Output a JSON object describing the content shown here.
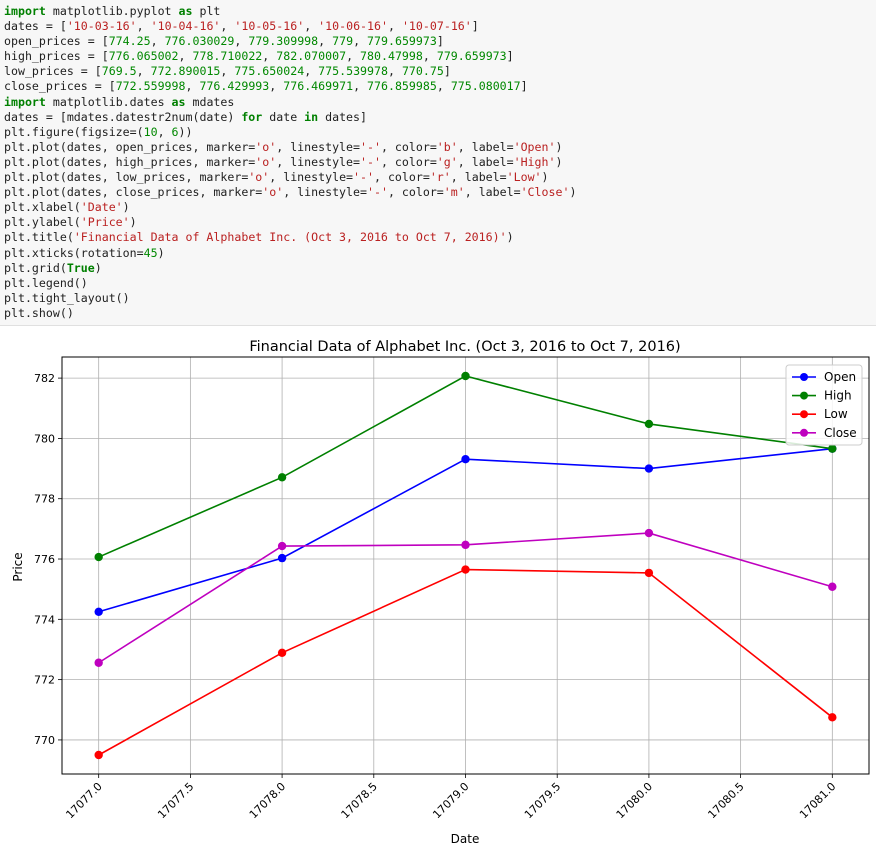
{
  "code": {
    "lines": [
      [
        {
          "t": "import",
          "c": "kw"
        },
        {
          "t": " matplotlib.pyplot "
        },
        {
          "t": "as",
          "c": "kw"
        },
        {
          "t": " plt"
        }
      ],
      [
        {
          "t": "dates = ["
        },
        {
          "t": "'10-03-16'",
          "c": "str"
        },
        {
          "t": ", "
        },
        {
          "t": "'10-04-16'",
          "c": "str"
        },
        {
          "t": ", "
        },
        {
          "t": "'10-05-16'",
          "c": "str"
        },
        {
          "t": ", "
        },
        {
          "t": "'10-06-16'",
          "c": "str"
        },
        {
          "t": ", "
        },
        {
          "t": "'10-07-16'",
          "c": "str"
        },
        {
          "t": "]"
        }
      ],
      [
        {
          "t": "open_prices = ["
        },
        {
          "t": "774.25",
          "c": "num"
        },
        {
          "t": ", "
        },
        {
          "t": "776.030029",
          "c": "num"
        },
        {
          "t": ", "
        },
        {
          "t": "779.309998",
          "c": "num"
        },
        {
          "t": ", "
        },
        {
          "t": "779",
          "c": "num"
        },
        {
          "t": ", "
        },
        {
          "t": "779.659973",
          "c": "num"
        },
        {
          "t": "]"
        }
      ],
      [
        {
          "t": "high_prices = ["
        },
        {
          "t": "776.065002",
          "c": "num"
        },
        {
          "t": ", "
        },
        {
          "t": "778.710022",
          "c": "num"
        },
        {
          "t": ", "
        },
        {
          "t": "782.070007",
          "c": "num"
        },
        {
          "t": ", "
        },
        {
          "t": "780.47998",
          "c": "num"
        },
        {
          "t": ", "
        },
        {
          "t": "779.659973",
          "c": "num"
        },
        {
          "t": "]"
        }
      ],
      [
        {
          "t": "low_prices = ["
        },
        {
          "t": "769.5",
          "c": "num"
        },
        {
          "t": ", "
        },
        {
          "t": "772.890015",
          "c": "num"
        },
        {
          "t": ", "
        },
        {
          "t": "775.650024",
          "c": "num"
        },
        {
          "t": ", "
        },
        {
          "t": "775.539978",
          "c": "num"
        },
        {
          "t": ", "
        },
        {
          "t": "770.75",
          "c": "num"
        },
        {
          "t": "]"
        }
      ],
      [
        {
          "t": "close_prices = ["
        },
        {
          "t": "772.559998",
          "c": "num"
        },
        {
          "t": ", "
        },
        {
          "t": "776.429993",
          "c": "num"
        },
        {
          "t": ", "
        },
        {
          "t": "776.469971",
          "c": "num"
        },
        {
          "t": ", "
        },
        {
          "t": "776.859985",
          "c": "num"
        },
        {
          "t": ", "
        },
        {
          "t": "775.080017",
          "c": "num"
        },
        {
          "t": "]"
        }
      ],
      [
        {
          "t": "import",
          "c": "kw"
        },
        {
          "t": " matplotlib.dates "
        },
        {
          "t": "as",
          "c": "kw"
        },
        {
          "t": " mdates"
        }
      ],
      [
        {
          "t": "dates = [mdates.datestr2num(date) "
        },
        {
          "t": "for",
          "c": "kw"
        },
        {
          "t": " date "
        },
        {
          "t": "in",
          "c": "kw"
        },
        {
          "t": " dates]"
        }
      ],
      [
        {
          "t": "plt.figure(figsize=("
        },
        {
          "t": "10",
          "c": "num"
        },
        {
          "t": ", "
        },
        {
          "t": "6",
          "c": "num"
        },
        {
          "t": "))"
        }
      ],
      [
        {
          "t": "plt.plot(dates, open_prices, marker="
        },
        {
          "t": "'o'",
          "c": "str"
        },
        {
          "t": ", linestyle="
        },
        {
          "t": "'-'",
          "c": "str"
        },
        {
          "t": ", color="
        },
        {
          "t": "'b'",
          "c": "str"
        },
        {
          "t": ", label="
        },
        {
          "t": "'Open'",
          "c": "str"
        },
        {
          "t": ")"
        }
      ],
      [
        {
          "t": "plt.plot(dates, high_prices, marker="
        },
        {
          "t": "'o'",
          "c": "str"
        },
        {
          "t": ", linestyle="
        },
        {
          "t": "'-'",
          "c": "str"
        },
        {
          "t": ", color="
        },
        {
          "t": "'g'",
          "c": "str"
        },
        {
          "t": ", label="
        },
        {
          "t": "'High'",
          "c": "str"
        },
        {
          "t": ")"
        }
      ],
      [
        {
          "t": "plt.plot(dates, low_prices, marker="
        },
        {
          "t": "'o'",
          "c": "str"
        },
        {
          "t": ", linestyle="
        },
        {
          "t": "'-'",
          "c": "str"
        },
        {
          "t": ", color="
        },
        {
          "t": "'r'",
          "c": "str"
        },
        {
          "t": ", label="
        },
        {
          "t": "'Low'",
          "c": "str"
        },
        {
          "t": ")"
        }
      ],
      [
        {
          "t": "plt.plot(dates, close_prices, marker="
        },
        {
          "t": "'o'",
          "c": "str"
        },
        {
          "t": ", linestyle="
        },
        {
          "t": "'-'",
          "c": "str"
        },
        {
          "t": ", color="
        },
        {
          "t": "'m'",
          "c": "str"
        },
        {
          "t": ", label="
        },
        {
          "t": "'Close'",
          "c": "str"
        },
        {
          "t": ")"
        }
      ],
      [
        {
          "t": "plt.xlabel("
        },
        {
          "t": "'Date'",
          "c": "str"
        },
        {
          "t": ")"
        }
      ],
      [
        {
          "t": "plt.ylabel("
        },
        {
          "t": "'Price'",
          "c": "str"
        },
        {
          "t": ")"
        }
      ],
      [
        {
          "t": "plt.title("
        },
        {
          "t": "'Financial Data of Alphabet Inc. (Oct 3, 2016 to Oct 7, 2016)'",
          "c": "str"
        },
        {
          "t": ")"
        }
      ],
      [
        {
          "t": "plt.xticks(rotation="
        },
        {
          "t": "45",
          "c": "num"
        },
        {
          "t": ")"
        }
      ],
      [
        {
          "t": "plt.grid("
        },
        {
          "t": "True",
          "c": "kw"
        },
        {
          "t": ")"
        }
      ],
      [
        {
          "t": "plt.legend()"
        }
      ],
      [
        {
          "t": "plt.tight_layout()"
        }
      ],
      [
        {
          "t": "plt.show()"
        }
      ]
    ]
  },
  "chart_data": {
    "type": "line",
    "title": "Financial Data of Alphabet Inc. (Oct 3, 2016 to Oct 7, 2016)",
    "xlabel": "Date",
    "ylabel": "Price",
    "x": [
      17077.0,
      17078.0,
      17079.0,
      17080.0,
      17081.0
    ],
    "xlim": [
      16776.8,
      17081.2
    ],
    "ylim": [
      768.87,
      782.7
    ],
    "xticks": [
      "17077.0",
      "17077.5",
      "17078.0",
      "17078.5",
      "17079.0",
      "17079.5",
      "17080.0",
      "17080.5",
      "17081.0"
    ],
    "xtick_values": [
      17077.0,
      17077.5,
      17078.0,
      17078.5,
      17079.0,
      17079.5,
      17080.0,
      17080.5,
      17081.0
    ],
    "yticks": [
      "770",
      "772",
      "774",
      "776",
      "778",
      "780",
      "782"
    ],
    "ytick_values": [
      770,
      772,
      774,
      776,
      778,
      780,
      782
    ],
    "grid": true,
    "legend_position": "top-right",
    "series": [
      {
        "name": "Open",
        "color": "#0000ff",
        "values": [
          774.25,
          776.030029,
          779.309998,
          779,
          779.659973
        ]
      },
      {
        "name": "High",
        "color": "#008000",
        "values": [
          776.065002,
          778.710022,
          782.070007,
          780.47998,
          779.659973
        ]
      },
      {
        "name": "Low",
        "color": "#ff0000",
        "values": [
          769.5,
          772.890015,
          775.650024,
          775.539978,
          770.75
        ]
      },
      {
        "name": "Close",
        "color": "#bf00bf",
        "values": [
          772.559998,
          776.429993,
          776.469971,
          776.859985,
          775.080017
        ]
      }
    ]
  }
}
